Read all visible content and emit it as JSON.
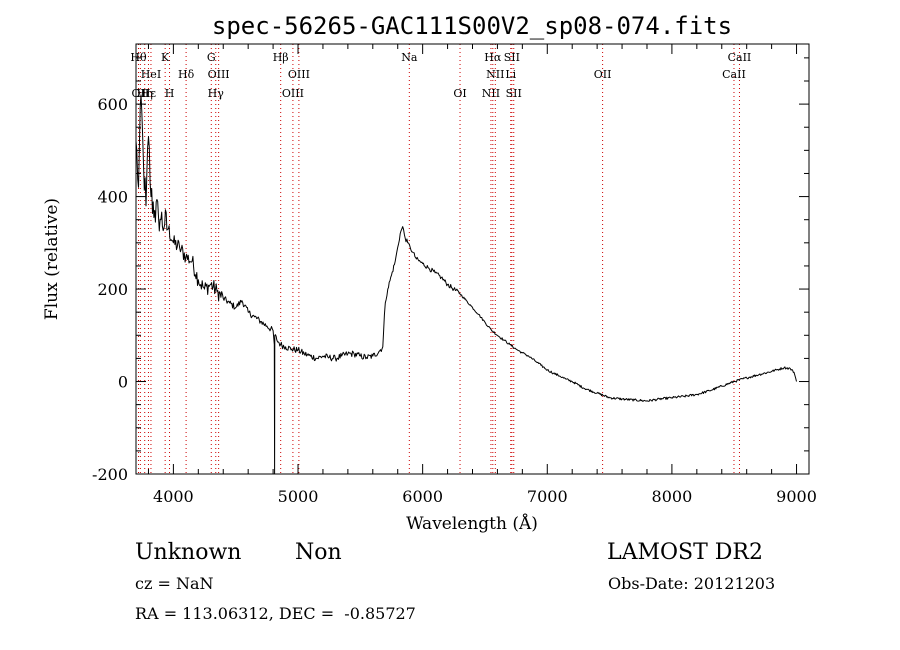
{
  "chart_data": {
    "type": "line",
    "title": "spec-56265-GAC111S00V2_sp08-074.fits",
    "xlabel": "Wavelength (Å)",
    "ylabel": "Flux (relative)",
    "xlim": [
      3700,
      9100
    ],
    "ylim": [
      -200,
      730
    ],
    "xticks": [
      4000,
      5000,
      6000,
      7000,
      8000,
      9000
    ],
    "yticks": [
      -200,
      0,
      200,
      400,
      600
    ],
    "grid": false,
    "line_color": "#000000",
    "marker_color": "#cc0000",
    "series": [
      {
        "x": [
          3700,
          3720,
          3740,
          3760,
          3780,
          3800,
          3820,
          3850,
          3880,
          3900,
          3930,
          3960,
          4000,
          4050,
          4100,
          4150,
          4200,
          4250,
          4300,
          4350,
          4400,
          4450,
          4500,
          4550,
          4600,
          4650,
          4700,
          4750,
          4800,
          4810,
          4812,
          4814,
          4830,
          4860,
          4900,
          4950,
          5000,
          5050,
          5100,
          5150,
          5200,
          5250,
          5300,
          5350,
          5400,
          5450,
          5500,
          5550,
          5600,
          5650,
          5680,
          5700,
          5720,
          5750,
          5780,
          5800,
          5820,
          5840,
          5860,
          5880,
          5900,
          5920,
          5950,
          6000,
          6050,
          6100,
          6150,
          6200,
          6250,
          6300,
          6350,
          6400,
          6450,
          6500,
          6550,
          6600,
          6650,
          6700,
          6750,
          6800,
          6850,
          6900,
          6950,
          7000,
          7050,
          7100,
          7150,
          7200,
          7300,
          7400,
          7500,
          7600,
          7700,
          7800,
          7900,
          8000,
          8100,
          8200,
          8300,
          8400,
          8500,
          8600,
          8700,
          8800,
          8850,
          8900,
          8950,
          8980,
          9000
        ],
        "y": [
          520,
          420,
          620,
          470,
          380,
          530,
          400,
          370,
          360,
          350,
          340,
          330,
          300,
          290,
          270,
          260,
          220,
          200,
          210,
          195,
          180,
          170,
          160,
          175,
          150,
          140,
          130,
          120,
          110,
          80,
          -200,
          100,
          90,
          80,
          75,
          70,
          68,
          60,
          55,
          50,
          55,
          52,
          50,
          55,
          60,
          60,
          55,
          52,
          55,
          65,
          75,
          170,
          200,
          230,
          260,
          290,
          320,
          335,
          310,
          300,
          290,
          280,
          265,
          255,
          245,
          235,
          225,
          210,
          200,
          190,
          175,
          160,
          145,
          128,
          112,
          100,
          90,
          80,
          70,
          62,
          55,
          45,
          35,
          25,
          18,
          12,
          5,
          0,
          -15,
          -25,
          -35,
          -38,
          -40,
          -42,
          -38,
          -35,
          -32,
          -28,
          -20,
          -10,
          0,
          8,
          15,
          22,
          26,
          30,
          28,
          20,
          0
        ]
      }
    ],
    "lines": [
      {
        "x": 3720,
        "row": 1,
        "label": "Hθ"
      },
      {
        "x": 3735,
        "row": 3,
        "label": "OII"
      },
      {
        "x": 3770,
        "row": 3,
        "label": "Hη"
      },
      {
        "x": 3800,
        "row": 3,
        "label": "Hε"
      },
      {
        "x": 3820,
        "row": 2,
        "label": "HeI"
      },
      {
        "x": 3934,
        "row": 1,
        "label": "K"
      },
      {
        "x": 3969,
        "row": 3,
        "label": "H"
      },
      {
        "x": 4102,
        "row": 2,
        "label": "Hδ"
      },
      {
        "x": 4304,
        "row": 1,
        "label": "G"
      },
      {
        "x": 4340,
        "row": 3,
        "label": "Hγ"
      },
      {
        "x": 4363,
        "row": 2,
        "label": "OIII"
      },
      {
        "x": 4861,
        "row": 1,
        "label": "Hβ"
      },
      {
        "x": 4959,
        "row": 3,
        "label": "OIII"
      },
      {
        "x": 5007,
        "row": 2,
        "label": "OIII"
      },
      {
        "x": 5893,
        "row": 1,
        "label": "Na"
      },
      {
        "x": 6300,
        "row": 3,
        "label": "OI"
      },
      {
        "x": 6548,
        "row": 3,
        "label": "NII"
      },
      {
        "x": 6563,
        "row": 1,
        "label": "Hα"
      },
      {
        "x": 6583,
        "row": 2,
        "label": "NII"
      },
      {
        "x": 6707,
        "row": 2,
        "label": "Li"
      },
      {
        "x": 6716,
        "row": 1,
        "label": "SII"
      },
      {
        "x": 6731,
        "row": 3,
        "label": "SII"
      },
      {
        "x": 7444,
        "row": 2,
        "label": "OII"
      },
      {
        "x": 8498,
        "row": 2,
        "label": "CaII"
      },
      {
        "x": 8542,
        "row": 1,
        "label": "CaII"
      }
    ]
  },
  "footer": {
    "class": "Unknown",
    "subclass": "Non",
    "survey": "LAMOST DR2",
    "cz": "cz = NaN",
    "obs_date": "Obs-Date: 20121203",
    "radec": "RA = 113.06312, DEC =  -0.85727"
  }
}
